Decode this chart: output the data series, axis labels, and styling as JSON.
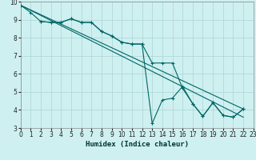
{
  "series_zigzag1": {
    "x": [
      0,
      1,
      2,
      3,
      4,
      5,
      6,
      7,
      8,
      9,
      10,
      11,
      12,
      13,
      14,
      15,
      16,
      17,
      18,
      19,
      20,
      21,
      22
    ],
    "y": [
      9.8,
      9.4,
      8.9,
      8.85,
      8.85,
      9.05,
      8.85,
      8.85,
      8.35,
      8.1,
      7.75,
      7.65,
      7.65,
      3.25,
      4.55,
      4.65,
      5.3,
      4.35,
      3.65,
      4.4,
      3.7,
      3.6,
      4.05
    ]
  },
  "series_zigzag2": {
    "x": [
      2,
      3,
      4,
      5,
      6,
      7,
      8,
      9,
      10,
      11,
      12,
      13,
      14,
      15,
      16,
      17,
      18,
      19,
      20,
      21,
      22
    ],
    "y": [
      8.9,
      8.85,
      8.85,
      9.05,
      8.85,
      8.85,
      8.35,
      8.1,
      7.75,
      7.65,
      7.65,
      6.6,
      6.6,
      6.6,
      5.2,
      4.35,
      3.65,
      4.4,
      3.7,
      3.6,
      4.05
    ]
  },
  "series_line1": {
    "x": [
      0,
      22
    ],
    "y": [
      9.8,
      4.05
    ]
  },
  "series_line2": {
    "x": [
      0,
      22
    ],
    "y": [
      9.8,
      3.6
    ]
  },
  "line_color": "#006666",
  "marker": "+",
  "markersize": 3,
  "linewidth": 0.8,
  "bg_color": "#cff0f0",
  "grid_color": "#aad4d4",
  "xlabel": "Humidex (Indice chaleur)",
  "xlim": [
    0,
    23
  ],
  "ylim": [
    3,
    10
  ],
  "yticks": [
    3,
    4,
    5,
    6,
    7,
    8,
    9,
    10
  ],
  "xticks": [
    0,
    1,
    2,
    3,
    4,
    5,
    6,
    7,
    8,
    9,
    10,
    11,
    12,
    13,
    14,
    15,
    16,
    17,
    18,
    19,
    20,
    21,
    22,
    23
  ]
}
